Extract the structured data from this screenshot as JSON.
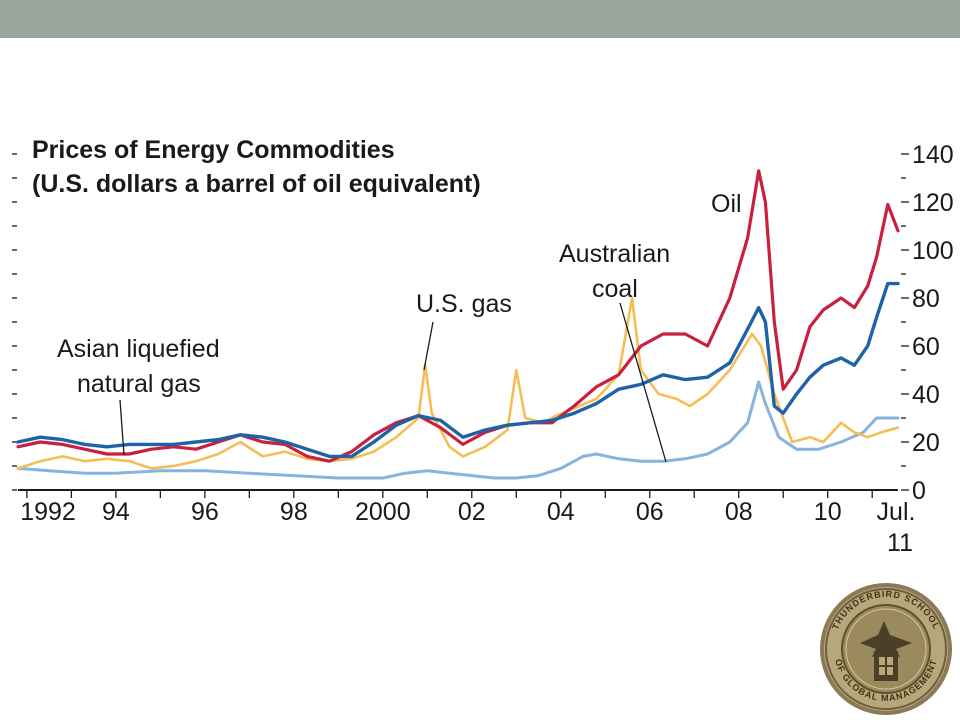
{
  "chart_data": {
    "type": "line",
    "title": "Prices of Energy Commodities",
    "subtitle": "(U.S. dollars a barrel of oil equivalent)",
    "y_axis": {
      "position": "right",
      "ylim": [
        0,
        140
      ],
      "ticks": [
        0,
        20,
        40,
        60,
        80,
        100,
        120,
        140
      ]
    },
    "x_axis": {
      "range": [
        1991.8,
        2011.58
      ],
      "ticks": [
        {
          "year": 1992,
          "label": "1992"
        },
        {
          "year": 1994,
          "label": "94"
        },
        {
          "year": 1996,
          "label": "96"
        },
        {
          "year": 1998,
          "label": "98"
        },
        {
          "year": 2000,
          "label": "2000"
        },
        {
          "year": 2002,
          "label": "02"
        },
        {
          "year": 2004,
          "label": "04"
        },
        {
          "year": 2006,
          "label": "06"
        },
        {
          "year": 2008,
          "label": "08"
        },
        {
          "year": 2010,
          "label": "10"
        },
        {
          "year": 2011.6,
          "label": "Jul."
        },
        {
          "year": 2011.6,
          "label": "11"
        }
      ]
    },
    "annotations": [
      {
        "text": "Oil",
        "series": "oil"
      },
      {
        "text": "U.S. gas",
        "series": "us_gas"
      },
      {
        "text": "Australian",
        "series": "australian_coal"
      },
      {
        "text": "coal",
        "series": "australian_coal"
      },
      {
        "text": "Asian liquefied",
        "series": "asian_lng"
      },
      {
        "text": "natural gas",
        "series": "asian_lng"
      }
    ],
    "series": [
      {
        "id": "oil",
        "color": "#c8203e",
        "points": [
          [
            1991.8,
            18
          ],
          [
            1992.3,
            20
          ],
          [
            1992.8,
            19
          ],
          [
            1993.3,
            17
          ],
          [
            1993.8,
            15
          ],
          [
            1994.3,
            15
          ],
          [
            1994.8,
            17
          ],
          [
            1995.3,
            18
          ],
          [
            1995.8,
            17
          ],
          [
            1996.3,
            20
          ],
          [
            1996.8,
            23
          ],
          [
            1997.3,
            20
          ],
          [
            1997.8,
            19
          ],
          [
            1998.3,
            14
          ],
          [
            1998.8,
            12
          ],
          [
            1999.3,
            16
          ],
          [
            1999.8,
            23
          ],
          [
            2000.3,
            28
          ],
          [
            2000.8,
            31
          ],
          [
            2001.3,
            26
          ],
          [
            2001.8,
            19
          ],
          [
            2002.3,
            24
          ],
          [
            2002.8,
            27
          ],
          [
            2003.3,
            28
          ],
          [
            2003.8,
            28
          ],
          [
            2004.3,
            35
          ],
          [
            2004.8,
            43
          ],
          [
            2005.3,
            48
          ],
          [
            2005.8,
            60
          ],
          [
            2006.3,
            65
          ],
          [
            2006.8,
            65
          ],
          [
            2007.3,
            60
          ],
          [
            2007.8,
            80
          ],
          [
            2008.2,
            105
          ],
          [
            2008.45,
            133
          ],
          [
            2008.6,
            120
          ],
          [
            2008.8,
            70
          ],
          [
            2009.0,
            42
          ],
          [
            2009.3,
            50
          ],
          [
            2009.6,
            68
          ],
          [
            2009.9,
            75
          ],
          [
            2010.3,
            80
          ],
          [
            2010.6,
            76
          ],
          [
            2010.9,
            85
          ],
          [
            2011.1,
            97
          ],
          [
            2011.35,
            119
          ],
          [
            2011.58,
            108
          ]
        ]
      },
      {
        "id": "asian_lng",
        "color": "#1e63a8",
        "points": [
          [
            1991.8,
            20
          ],
          [
            1992.3,
            22
          ],
          [
            1992.8,
            21
          ],
          [
            1993.3,
            19
          ],
          [
            1993.8,
            18
          ],
          [
            1994.3,
            19
          ],
          [
            1994.8,
            19
          ],
          [
            1995.3,
            19
          ],
          [
            1995.8,
            20
          ],
          [
            1996.3,
            21
          ],
          [
            1996.8,
            23
          ],
          [
            1997.3,
            22
          ],
          [
            1997.8,
            20
          ],
          [
            1998.3,
            17
          ],
          [
            1998.8,
            14
          ],
          [
            1999.3,
            14
          ],
          [
            1999.8,
            20
          ],
          [
            2000.3,
            27
          ],
          [
            2000.8,
            31
          ],
          [
            2001.3,
            29
          ],
          [
            2001.8,
            22
          ],
          [
            2002.3,
            25
          ],
          [
            2002.8,
            27
          ],
          [
            2003.3,
            28
          ],
          [
            2003.8,
            29
          ],
          [
            2004.3,
            32
          ],
          [
            2004.8,
            36
          ],
          [
            2005.3,
            42
          ],
          [
            2005.8,
            44
          ],
          [
            2006.3,
            48
          ],
          [
            2006.8,
            46
          ],
          [
            2007.3,
            47
          ],
          [
            2007.8,
            53
          ],
          [
            2008.2,
            67
          ],
          [
            2008.45,
            76
          ],
          [
            2008.6,
            70
          ],
          [
            2008.8,
            35
          ],
          [
            2009.0,
            32
          ],
          [
            2009.3,
            40
          ],
          [
            2009.6,
            47
          ],
          [
            2009.9,
            52
          ],
          [
            2010.3,
            55
          ],
          [
            2010.6,
            52
          ],
          [
            2010.9,
            60
          ],
          [
            2011.1,
            72
          ],
          [
            2011.35,
            86
          ],
          [
            2011.58,
            86
          ]
        ]
      },
      {
        "id": "us_gas",
        "color": "#f5bd55",
        "points": [
          [
            1991.8,
            9
          ],
          [
            1992.3,
            12
          ],
          [
            1992.8,
            14
          ],
          [
            1993.3,
            12
          ],
          [
            1993.8,
            13
          ],
          [
            1994.3,
            12
          ],
          [
            1994.8,
            9
          ],
          [
            1995.3,
            10
          ],
          [
            1995.8,
            12
          ],
          [
            1996.3,
            15
          ],
          [
            1996.8,
            20
          ],
          [
            1997.3,
            14
          ],
          [
            1997.8,
            16
          ],
          [
            1998.3,
            13
          ],
          [
            1998.8,
            12
          ],
          [
            1999.3,
            13
          ],
          [
            1999.8,
            16
          ],
          [
            2000.3,
            22
          ],
          [
            2000.8,
            30
          ],
          [
            2000.95,
            52
          ],
          [
            2001.1,
            32
          ],
          [
            2001.5,
            18
          ],
          [
            2001.8,
            14
          ],
          [
            2002.3,
            18
          ],
          [
            2002.8,
            25
          ],
          [
            2003.0,
            50
          ],
          [
            2003.2,
            30
          ],
          [
            2003.6,
            28
          ],
          [
            2003.9,
            31
          ],
          [
            2004.3,
            34
          ],
          [
            2004.8,
            38
          ],
          [
            2005.3,
            48
          ],
          [
            2005.6,
            80
          ],
          [
            2005.8,
            50
          ],
          [
            2006.2,
            40
          ],
          [
            2006.6,
            38
          ],
          [
            2006.9,
            35
          ],
          [
            2007.3,
            40
          ],
          [
            2007.8,
            50
          ],
          [
            2008.3,
            65
          ],
          [
            2008.5,
            60
          ],
          [
            2008.8,
            40
          ],
          [
            2009.2,
            20
          ],
          [
            2009.6,
            22
          ],
          [
            2009.9,
            20
          ],
          [
            2010.3,
            28
          ],
          [
            2010.6,
            24
          ],
          [
            2010.9,
            22
          ],
          [
            2011.2,
            24
          ],
          [
            2011.58,
            26
          ]
        ]
      },
      {
        "id": "australian_coal",
        "color": "#86b4dd",
        "points": [
          [
            1991.8,
            9
          ],
          [
            1992.5,
            8
          ],
          [
            1993.3,
            7
          ],
          [
            1994.0,
            7
          ],
          [
            1995.0,
            8
          ],
          [
            1996.0,
            8
          ],
          [
            1997.0,
            7
          ],
          [
            1998.0,
            6
          ],
          [
            1999.0,
            5
          ],
          [
            2000.0,
            5
          ],
          [
            2000.5,
            7
          ],
          [
            2001.0,
            8
          ],
          [
            2001.5,
            7
          ],
          [
            2002.0,
            6
          ],
          [
            2002.5,
            5
          ],
          [
            2003.0,
            5
          ],
          [
            2003.5,
            6
          ],
          [
            2004.0,
            9
          ],
          [
            2004.5,
            14
          ],
          [
            2004.8,
            15
          ],
          [
            2005.3,
            13
          ],
          [
            2005.8,
            12
          ],
          [
            2006.3,
            12
          ],
          [
            2006.8,
            13
          ],
          [
            2007.3,
            15
          ],
          [
            2007.8,
            20
          ],
          [
            2008.2,
            28
          ],
          [
            2008.45,
            45
          ],
          [
            2008.6,
            36
          ],
          [
            2008.9,
            22
          ],
          [
            2009.3,
            17
          ],
          [
            2009.8,
            17
          ],
          [
            2010.3,
            20
          ],
          [
            2010.8,
            24
          ],
          [
            2011.1,
            30
          ],
          [
            2011.58,
            30
          ]
        ]
      }
    ]
  }
}
